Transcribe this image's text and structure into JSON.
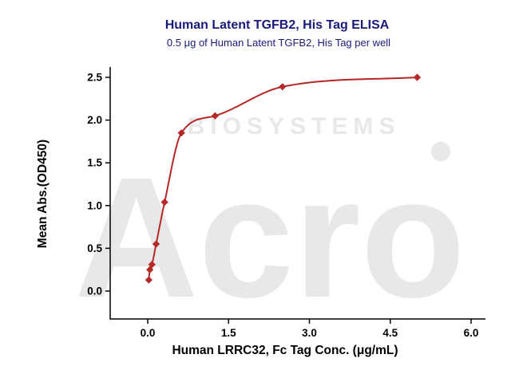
{
  "watermark": {
    "brand": "Acro",
    "sub": "BIOSYSTEMS"
  },
  "colors": {
    "title": "#1a1a7a",
    "accent": "#b52828",
    "watermark": "#e8e8e8",
    "axis": "#000000"
  },
  "chart_data": {
    "type": "scatter",
    "title": "Human Latent TGFB2, His Tag ELISA",
    "subtitle": "0.5 μg of Human Latent TGFB2, His Tag per well",
    "xlabel": "Human LRRC32, Fc Tag Conc. (μg/mL)",
    "ylabel": "Mean Abs.(OD450)",
    "x": [
      0.02,
      0.039,
      0.078,
      0.156,
      0.313,
      0.625,
      1.25,
      2.5,
      5.0
    ],
    "y": [
      0.13,
      0.25,
      0.31,
      0.55,
      1.04,
      1.85,
      2.05,
      2.39,
      2.5
    ],
    "xticks": [
      0.0,
      1.5,
      3.0,
      4.5,
      6.0
    ],
    "yticks": [
      0.0,
      0.5,
      1.0,
      1.5,
      2.0,
      2.5
    ],
    "xlim": [
      0,
      6.2
    ],
    "ylim": [
      0,
      2.9
    ],
    "marker": "diamond",
    "marker_color": "#b52828",
    "line_color": "#b52828",
    "curve": "smooth sigmoidal fit through points",
    "legend": "none",
    "grid": false
  }
}
